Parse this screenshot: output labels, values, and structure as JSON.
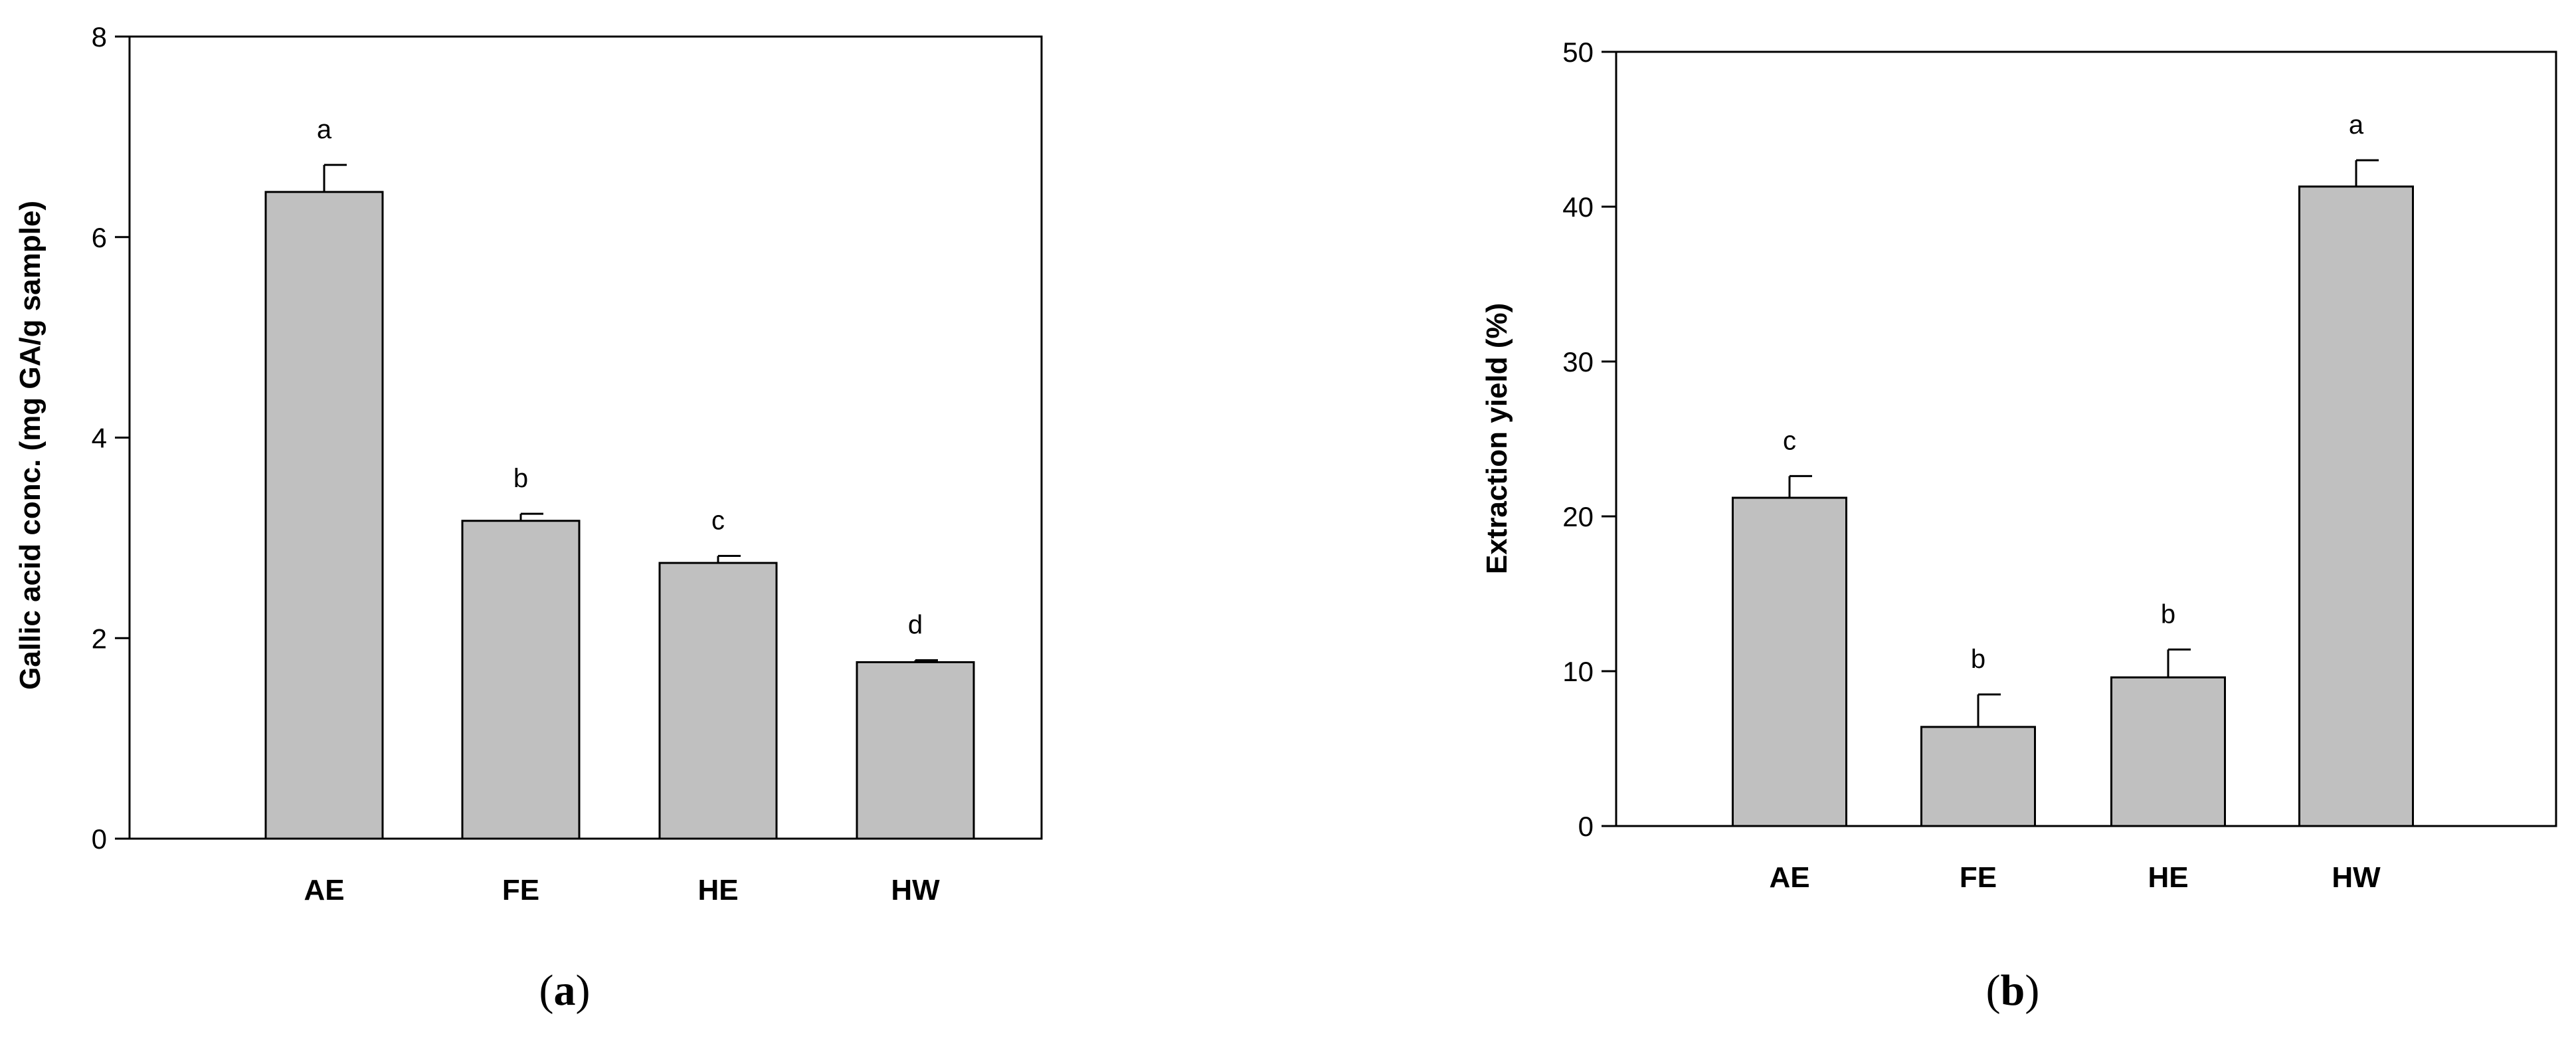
{
  "colors": {
    "bar_fill": "#c0c0c0",
    "stroke": "#000000",
    "background": "#ffffff"
  },
  "chart_data": [
    {
      "type": "bar",
      "panel_label": "a",
      "title": "",
      "xlabel": "",
      "ylabel": "Gallic acid conc. (mg GA/g sample)",
      "categories": [
        "AE",
        "FE",
        "HE",
        "HW"
      ],
      "values": [
        6.45,
        3.17,
        2.75,
        1.76
      ],
      "errors": [
        0.27,
        0.07,
        0.07,
        0.02
      ],
      "significance": [
        "a",
        "b",
        "c",
        "d"
      ],
      "ylim": [
        0,
        8
      ],
      "yticks": [
        0,
        2,
        4,
        6,
        8
      ],
      "ytick_labels": [
        "0",
        "2",
        "4",
        "6",
        "8"
      ],
      "grid": false,
      "legend": "none"
    },
    {
      "type": "bar",
      "panel_label": "b",
      "title": "",
      "xlabel": "",
      "ylabel": "Extraction yield (%)",
      "categories": [
        "AE",
        "FE",
        "HE",
        "HW"
      ],
      "values": [
        21.2,
        6.4,
        9.6,
        41.3
      ],
      "errors": [
        1.4,
        2.1,
        1.8,
        1.7
      ],
      "significance": [
        "c",
        "b",
        "b",
        "a"
      ],
      "ylim": [
        0,
        50
      ],
      "yticks": [
        0,
        10,
        20,
        30,
        40,
        50
      ],
      "ytick_labels": [
        "0",
        "10",
        "20",
        "30",
        "40",
        "50"
      ],
      "grid": false,
      "legend": "none"
    }
  ]
}
